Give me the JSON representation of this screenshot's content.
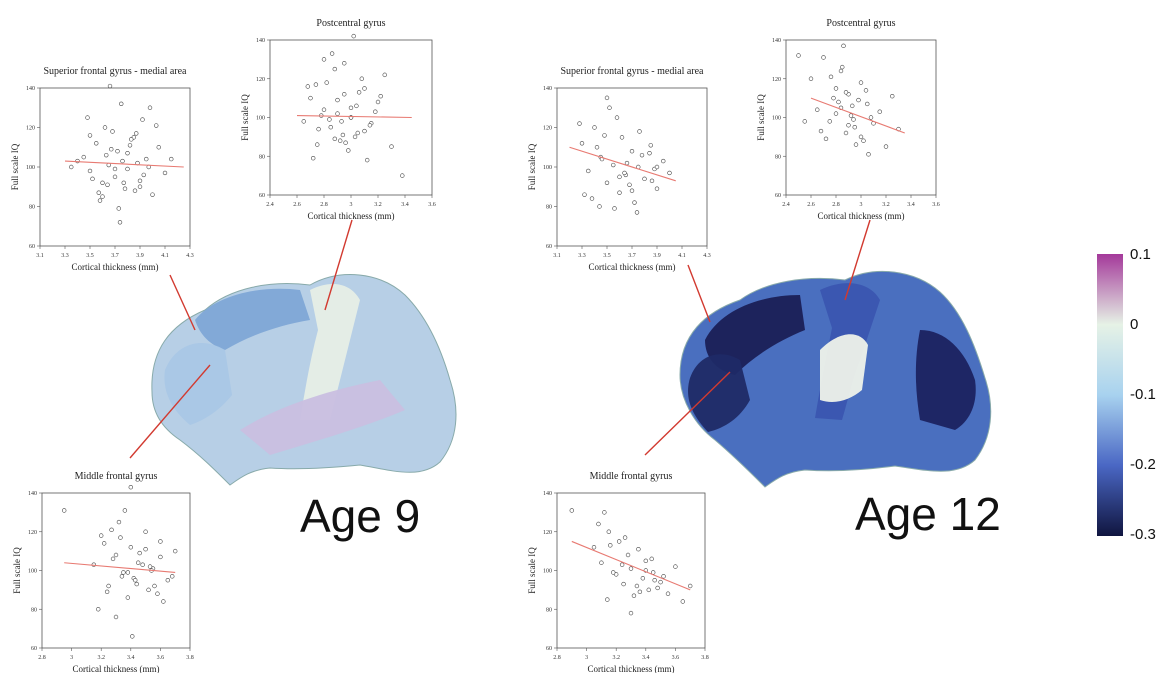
{
  "colors": {
    "fit_line": "#e87a72",
    "marker_edge": "#444444",
    "frame": "#555555"
  },
  "panels": [
    {
      "title": "Age 9",
      "regions": [
        {
          "name": "Superior frontal gyrus - medial area",
          "shade": "#7ea6d6"
        },
        {
          "name": "Postcentral gyrus",
          "shade": "#e6eee6"
        },
        {
          "name": "Middle frontal gyrus",
          "shade": "#a9c7e6"
        }
      ]
    },
    {
      "title": "Age 12",
      "regions": [
        {
          "name": "Superior frontal gyrus - medial area",
          "shade": "#1a1f56"
        },
        {
          "name": "Postcentral gyrus",
          "shade": "#3a55b0"
        },
        {
          "name": "Middle frontal gyrus",
          "shade": "#1f2a66"
        }
      ]
    }
  ],
  "colorbar": {
    "ticks": [
      "0.1",
      "0",
      "-0.1",
      "-0.2",
      "-0.3"
    ],
    "range": [
      -0.3,
      0.1
    ],
    "stops": [
      "#a4399a",
      "#e6f2e6",
      "#a8d2ef",
      "#4a67c4",
      "#10153f"
    ]
  },
  "chart_data": [
    {
      "type": "scatter",
      "title": "Superior frontal gyrus - medial area",
      "xlabel": "Cortical thickness (mm)",
      "ylabel": "Full scale IQ",
      "xlim": [
        3.1,
        4.3
      ],
      "ylim": [
        60,
        140
      ],
      "xticks": [
        "3.1",
        "3.3",
        "3.5",
        "3.7",
        "3.9",
        "4.1",
        "4.3"
      ],
      "yticks": [
        "60",
        "80",
        "100",
        "120",
        "140"
      ],
      "fit": {
        "x": [
          3.3,
          4.25
        ],
        "y": [
          103,
          100
        ]
      },
      "points": {
        "x": [
          3.45,
          3.5,
          3.55,
          3.6,
          3.62,
          3.65,
          3.7,
          3.72,
          3.75,
          3.8,
          3.85,
          3.9,
          3.95,
          4.0,
          4.05,
          4.1,
          3.48,
          3.58,
          3.68,
          3.78,
          3.88,
          3.98,
          3.52,
          3.63,
          3.73,
          3.83,
          3.93,
          4.03,
          3.4,
          3.57,
          3.67,
          3.77,
          3.87,
          3.97,
          3.66,
          3.74,
          3.82,
          3.6,
          3.7,
          3.8,
          3.9,
          3.5,
          3.64,
          3.76,
          3.86,
          4.15,
          3.35,
          3.92
        ],
        "y": [
          105,
          98,
          112,
          92,
          120,
          101,
          95,
          108,
          132,
          99,
          115,
          90,
          104,
          86,
          110,
          97,
          125,
          83,
          118,
          89,
          102,
          130,
          94,
          106,
          79,
          114,
          96,
          121,
          103,
          87,
          109,
          92,
          117,
          100,
          141,
          72,
          111,
          85,
          99,
          107,
          93,
          116,
          91,
          103,
          88,
          104,
          100,
          124
        ]
      }
    },
    {
      "type": "scatter",
      "title": "Postcentral gyrus",
      "xlabel": "Cortical thickness (mm)",
      "ylabel": "Full scale IQ",
      "xlim": [
        2.4,
        3.6
      ],
      "ylim": [
        60,
        140
      ],
      "xticks": [
        "2.4",
        "2.6",
        "2.8",
        "3",
        "3.2",
        "3.4",
        "3.6"
      ],
      "yticks": [
        "60",
        "80",
        "100",
        "120",
        "140"
      ],
      "fit": {
        "x": [
          2.6,
          3.45
        ],
        "y": [
          101,
          100
        ]
      },
      "points": {
        "x": [
          2.65,
          2.7,
          2.75,
          2.8,
          2.82,
          2.85,
          2.88,
          2.9,
          2.92,
          2.95,
          3.0,
          3.02,
          3.05,
          3.1,
          3.15,
          3.2,
          3.25,
          3.3,
          2.72,
          2.78,
          2.86,
          2.94,
          3.04,
          3.12,
          2.68,
          2.84,
          2.96,
          3.08,
          3.18,
          2.76,
          2.9,
          2.98,
          3.06,
          3.14,
          2.8,
          2.88,
          3.0,
          3.1,
          3.22,
          2.74,
          2.93,
          3.03,
          3.38,
          2.95,
          3.0
        ],
        "y": [
          98,
          110,
          86,
          104,
          118,
          95,
          125,
          102,
          88,
          112,
          100,
          142,
          92,
          115,
          97,
          108,
          122,
          85,
          79,
          101,
          133,
          91,
          106,
          78,
          116,
          99,
          87,
          120,
          103,
          94,
          109,
          83,
          113,
          96,
          130,
          89,
          105,
          93,
          111,
          117,
          98,
          90,
          70,
          128,
          100
        ]
      }
    },
    {
      "type": "scatter",
      "title": "Middle frontal gyrus",
      "xlabel": "Cortical thickness (mm)",
      "ylabel": "Full scale IQ",
      "xlim": [
        2.8,
        3.8
      ],
      "ylim": [
        60,
        140
      ],
      "xticks": [
        "2.8",
        "3",
        "3.2",
        "3.4",
        "3.6",
        "3.8"
      ],
      "yticks": [
        "60",
        "80",
        "100",
        "120",
        "140"
      ],
      "fit": {
        "x": [
          2.95,
          3.7
        ],
        "y": [
          104,
          99
        ]
      },
      "points": {
        "x": [
          3.15,
          3.2,
          3.25,
          3.3,
          3.32,
          3.35,
          3.38,
          3.4,
          3.42,
          3.45,
          3.5,
          3.52,
          3.55,
          3.6,
          3.65,
          3.7,
          3.18,
          3.28,
          3.36,
          3.44,
          3.54,
          3.62,
          3.22,
          3.34,
          3.46,
          3.58,
          3.27,
          3.4,
          3.48,
          3.56,
          3.3,
          3.38,
          3.5,
          3.6,
          3.24,
          3.43,
          3.53,
          2.95,
          3.68,
          3.41,
          3.33
        ],
        "y": [
          103,
          118,
          92,
          108,
          125,
          99,
          86,
          112,
          96,
          104,
          120,
          90,
          101,
          115,
          95,
          110,
          80,
          106,
          131,
          93,
          100,
          84,
          114,
          97,
          109,
          88,
          121,
          143,
          103,
          92,
          76,
          99,
          111,
          107,
          89,
          95,
          102,
          131,
          97,
          66,
          117
        ]
      }
    },
    {
      "type": "scatter",
      "title": "Superior frontal gyrus - medial area",
      "xlabel": "Cortical thickness (mm)",
      "ylabel": "Full scale IQ",
      "xlim": [
        3.1,
        4.3
      ],
      "ylim": [
        60,
        140
      ],
      "xticks": [
        "3.1",
        "3.3",
        "3.5",
        "3.7",
        "3.9",
        "4.1",
        "4.3"
      ],
      "yticks": [
        "60",
        "80",
        "100",
        "120",
        "140"
      ],
      "fit": {
        "x": [
          3.2,
          4.05
        ],
        "y": [
          110,
          93
        ]
      },
      "points": {
        "x": [
          3.3,
          3.35,
          3.4,
          3.45,
          3.5,
          3.52,
          3.55,
          3.6,
          3.62,
          3.65,
          3.7,
          3.72,
          3.75,
          3.8,
          3.85,
          3.9,
          3.95,
          4.0,
          3.38,
          3.48,
          3.58,
          3.68,
          3.78,
          3.88,
          3.42,
          3.56,
          3.66,
          3.76,
          3.86,
          3.32,
          3.46,
          3.64,
          3.74,
          3.84,
          3.5,
          3.6,
          3.7,
          3.9,
          3.28,
          3.44
        ],
        "y": [
          112,
          98,
          120,
          105,
          92,
          130,
          101,
          87,
          115,
          96,
          108,
          82,
          100,
          94,
          111,
          89,
          103,
          97,
          84,
          116,
          125,
          91,
          106,
          99,
          110,
          79,
          102,
          118,
          93,
          86,
          104,
          97,
          77,
          107,
          135,
          95,
          88,
          100,
          122,
          80
        ]
      }
    },
    {
      "type": "scatter",
      "title": "Postcentral gyrus",
      "xlabel": "Cortical thickness (mm)",
      "ylabel": "Full scale IQ",
      "xlim": [
        2.4,
        3.6
      ],
      "ylim": [
        60,
        140
      ],
      "xticks": [
        "2.4",
        "2.6",
        "2.8",
        "3",
        "3.2",
        "3.4",
        "3.6"
      ],
      "yticks": [
        "60",
        "80",
        "100",
        "120",
        "140"
      ],
      "fit": {
        "x": [
          2.6,
          3.35
        ],
        "y": [
          110,
          92
        ]
      },
      "points": {
        "x": [
          2.6,
          2.65,
          2.7,
          2.75,
          2.8,
          2.82,
          2.85,
          2.88,
          2.9,
          2.92,
          2.95,
          3.0,
          3.02,
          3.05,
          3.1,
          3.15,
          3.2,
          3.25,
          3.3,
          2.72,
          2.78,
          2.86,
          2.94,
          3.04,
          2.68,
          2.84,
          2.96,
          3.08,
          2.76,
          2.9,
          2.98,
          3.06,
          2.8,
          2.88,
          3.0,
          2.5,
          2.55,
          2.84,
          2.93
        ],
        "y": [
          120,
          104,
          131,
          98,
          115,
          108,
          126,
          92,
          112,
          101,
          95,
          118,
          88,
          107,
          97,
          103,
          85,
          111,
          94,
          89,
          110,
          137,
          99,
          114,
          93,
          105,
          86,
          100,
          121,
          96,
          109,
          81,
          102,
          113,
          90,
          132,
          98,
          124,
          106
        ]
      }
    },
    {
      "type": "scatter",
      "title": "Middle frontal gyrus",
      "xlabel": "Cortical thickness (mm)",
      "ylabel": "Full scale IQ",
      "xlim": [
        2.8,
        3.8
      ],
      "ylim": [
        60,
        140
      ],
      "xticks": [
        "2.8",
        "3",
        "3.2",
        "3.4",
        "3.6",
        "3.8"
      ],
      "yticks": [
        "60",
        "80",
        "100",
        "120",
        "140"
      ],
      "fit": {
        "x": [
          2.9,
          3.7
        ],
        "y": [
          115,
          90
        ]
      },
      "points": {
        "x": [
          3.05,
          3.1,
          3.15,
          3.2,
          3.22,
          3.25,
          3.28,
          3.3,
          3.32,
          3.35,
          3.38,
          3.4,
          3.42,
          3.45,
          3.5,
          3.55,
          3.6,
          3.65,
          3.12,
          3.18,
          3.26,
          3.34,
          3.44,
          3.52,
          3.08,
          3.24,
          3.36,
          3.48,
          3.16,
          3.3,
          3.4,
          2.9,
          3.7,
          3.14,
          3.46
        ],
        "y": [
          112,
          104,
          120,
          98,
          115,
          93,
          108,
          101,
          87,
          111,
          96,
          105,
          90,
          99,
          94,
          88,
          102,
          84,
          130,
          99,
          117,
          92,
          106,
          97,
          124,
          103,
          89,
          91,
          113,
          78,
          100,
          131,
          92,
          85,
          95
        ]
      }
    }
  ]
}
